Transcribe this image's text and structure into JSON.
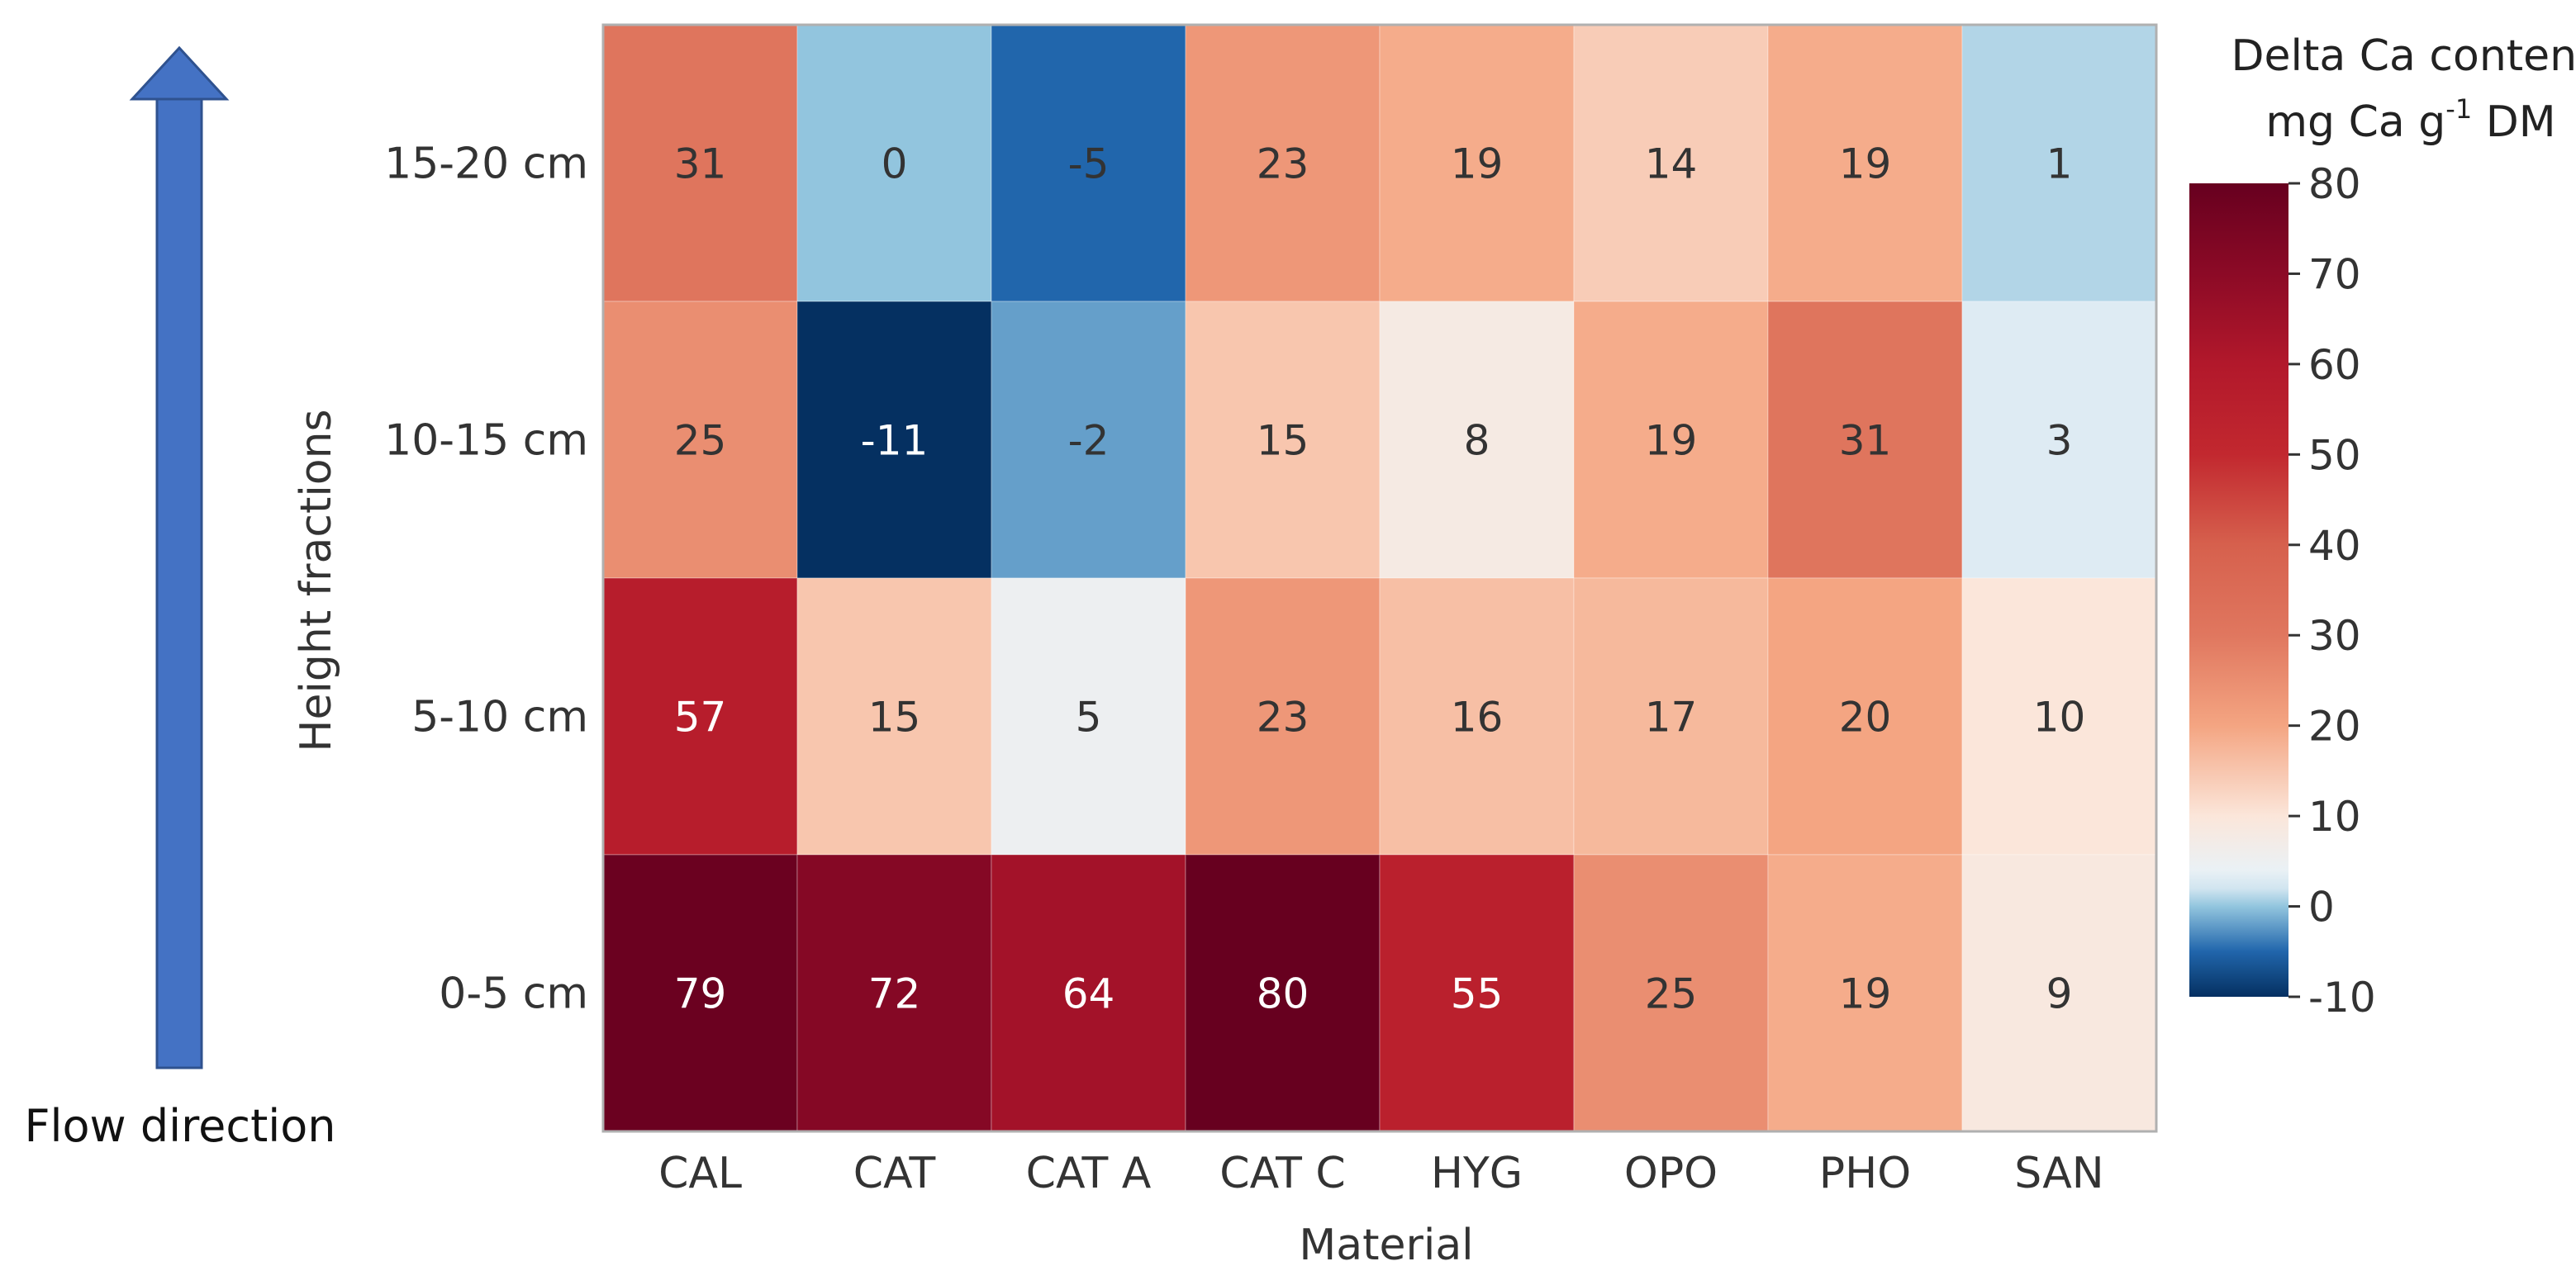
{
  "chart_data": {
    "type": "heatmap",
    "xlabel": "Material",
    "ylabel": "Height fractions",
    "x_categories": [
      "CAL",
      "CAT",
      "CAT A",
      "CAT C",
      "HYG",
      "OPO",
      "PHO",
      "SAN"
    ],
    "y_categories": [
      "15-20 cm",
      "10-15 cm",
      "5-10 cm",
      "0-5 cm"
    ],
    "values": [
      [
        31,
        0,
        -5,
        23,
        19,
        14,
        19,
        1
      ],
      [
        25,
        -11,
        -2,
        15,
        8,
        19,
        31,
        3
      ],
      [
        57,
        15,
        5,
        23,
        16,
        17,
        20,
        10
      ],
      [
        79,
        72,
        64,
        80,
        55,
        25,
        19,
        9
      ]
    ],
    "colorbar": {
      "title_line1": "Delta Ca content",
      "title_line2_prefix": "mg Ca g",
      "title_line2_sup": "-1",
      "title_line2_suffix": " DM",
      "range": [
        -10,
        80
      ],
      "ticks": [
        80,
        70,
        60,
        50,
        40,
        30,
        20,
        10,
        0,
        -10
      ],
      "colors": {
        "low": "#053061",
        "mid": "#f7f7f7",
        "high": "#67001f"
      },
      "scale": "diverging"
    },
    "annotation": {
      "label": "Flow direction",
      "arrow_color": "#4472c4",
      "arrow_direction": "up"
    }
  }
}
